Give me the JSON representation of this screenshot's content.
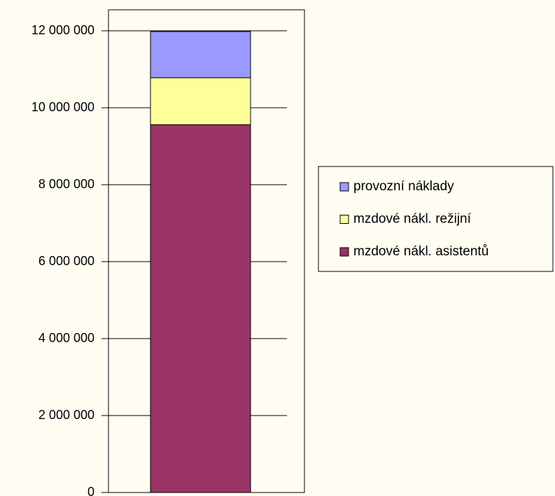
{
  "chart_data": {
    "type": "stacked-bar",
    "categories": [
      null
    ],
    "series": [
      {
        "name": "mzdové nákl. asistentů",
        "color": "#993366",
        "values": [
          9560000
        ]
      },
      {
        "name": "mzdové nákl. režijní",
        "color": "#ffff99",
        "values": [
          1220000
        ]
      },
      {
        "name": "provozní náklady",
        "color": "#9999ff",
        "values": [
          1200000
        ]
      }
    ],
    "ylim": [
      0,
      12000000
    ],
    "yticks": [
      {
        "value": 0,
        "label": "0"
      },
      {
        "value": 2000000,
        "label": "2 000 000"
      },
      {
        "value": 4000000,
        "label": "4 000 000"
      },
      {
        "value": 6000000,
        "label": "6 000 000"
      },
      {
        "value": 8000000,
        "label": "8 000 000"
      },
      {
        "value": 10000000,
        "label": "10 000 000"
      },
      {
        "value": 12000000,
        "label": "12 000 000"
      }
    ],
    "grid": true,
    "legend": "right"
  }
}
